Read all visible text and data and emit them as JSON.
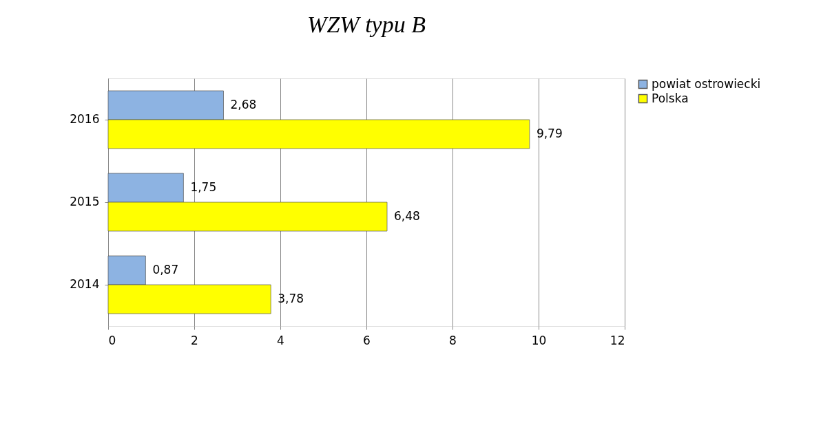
{
  "chart_data": {
    "type": "bar",
    "orientation": "horizontal",
    "title": "WZW typu B",
    "categories": [
      "2016",
      "2015",
      "2014"
    ],
    "series": [
      {
        "name": "powiat ostrowiecki",
        "color": "#8db3e2",
        "values": [
          2.68,
          1.75,
          0.87
        ],
        "value_labels": [
          "2,68",
          "1,75",
          "0,87"
        ]
      },
      {
        "name": "Polska",
        "color": "#ffff00",
        "values": [
          9.79,
          6.48,
          3.78
        ],
        "value_labels": [
          "9,79",
          "6,48",
          "3,78"
        ]
      }
    ],
    "xlim": [
      0,
      12
    ],
    "xticks": [
      0,
      2,
      4,
      6,
      8,
      10,
      12
    ],
    "grid": "x",
    "legend": "right"
  }
}
